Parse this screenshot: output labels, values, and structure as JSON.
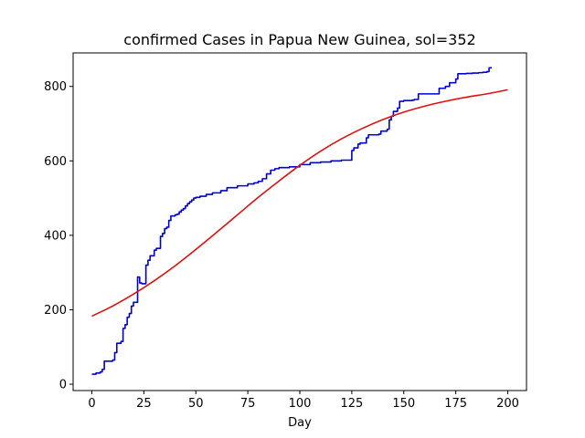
{
  "chart_data": {
    "type": "line",
    "title": "confirmed Cases in Papua New Guinea, sol=352",
    "xlabel": "Day",
    "ylabel": "",
    "xlim": [
      -9,
      209
    ],
    "ylim": [
      -17,
      890
    ],
    "xticks": [
      0,
      25,
      50,
      75,
      100,
      125,
      150,
      175,
      200
    ],
    "yticks": [
      0,
      200,
      400,
      600,
      800
    ],
    "grid": false,
    "legend": null,
    "colors": {
      "observed": "#0000cc",
      "fit": "#dd1111"
    },
    "series": [
      {
        "style": "steps",
        "color": "#0000cc",
        "x": [
          0,
          2,
          4,
          5,
          6,
          10,
          11,
          12,
          14,
          15,
          16,
          17,
          18,
          19,
          20,
          22,
          23,
          24,
          26,
          27,
          28,
          30,
          31,
          33,
          34,
          35,
          36,
          37,
          38,
          40,
          41,
          42,
          43,
          44,
          45,
          46,
          47,
          48,
          49,
          50,
          52,
          55,
          58,
          62,
          65,
          70,
          75,
          78,
          80,
          82,
          84,
          86,
          88,
          90,
          95,
          100,
          104,
          105,
          110,
          115,
          120,
          125,
          126,
          128,
          129,
          132,
          133,
          138,
          139,
          142,
          143,
          144,
          145,
          147,
          148,
          150,
          154,
          155,
          157,
          163,
          167,
          170,
          172,
          175,
          176,
          180,
          183,
          186,
          188,
          190,
          191,
          192
        ],
        "y": [
          27,
          30,
          33,
          40,
          62,
          65,
          85,
          110,
          115,
          150,
          160,
          180,
          190,
          210,
          220,
          288,
          272,
          270,
          320,
          333,
          345,
          360,
          365,
          397,
          405,
          418,
          422,
          440,
          452,
          455,
          457,
          463,
          468,
          472,
          479,
          485,
          490,
          495,
          500,
          502,
          505,
          510,
          514,
          520,
          528,
          533,
          538,
          541,
          545,
          552,
          565,
          575,
          579,
          582,
          584,
          590,
          590,
          595,
          597,
          600,
          602,
          628,
          635,
          645,
          648,
          662,
          670,
          672,
          680,
          685,
          710,
          720,
          733,
          742,
          760,
          762,
          763,
          765,
          780,
          780,
          795,
          800,
          810,
          820,
          834,
          835,
          836,
          837,
          838,
          840,
          850,
          852
        ]
      },
      {
        "style": "smooth",
        "color": "#dd1111",
        "x": [
          0,
          10,
          20,
          30,
          40,
          50,
          60,
          70,
          80,
          90,
          100,
          110,
          120,
          130,
          140,
          150,
          160,
          170,
          180,
          190,
          200
        ],
        "y": [
          183,
          210,
          242,
          278,
          318,
          362,
          408,
          455,
          502,
          546,
          588,
          626,
          659,
          687,
          711,
          731,
          747,
          760,
          771,
          780,
          791
        ]
      }
    ]
  }
}
